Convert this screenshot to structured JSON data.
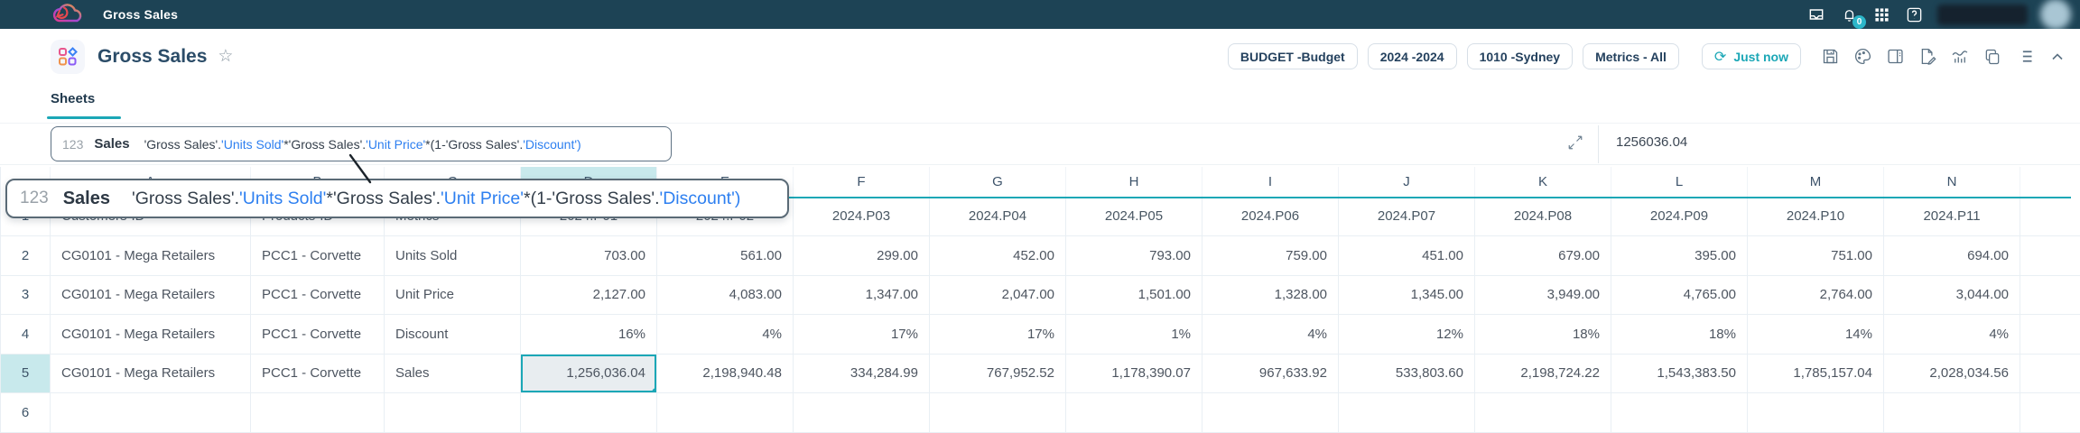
{
  "topbar": {
    "app_title": "Gross Sales",
    "notification_count": "0",
    "icons": [
      "inbox-icon",
      "bell-icon",
      "apps-grid-icon",
      "help-icon"
    ]
  },
  "header": {
    "title": "Gross Sales",
    "context_pills": [
      {
        "label": "BUDGET -Budget"
      },
      {
        "label": "2024 -2024"
      },
      {
        "label": "1010 -Sydney"
      },
      {
        "label": "Metrics - All"
      }
    ],
    "refresh_label": "Just now",
    "toolbar_icons": [
      "save-icon",
      "palette-icon",
      "board-icon",
      "edit-doc-icon",
      "chart-icon",
      "copy-icon",
      "list-icon",
      "collapse-icon"
    ]
  },
  "tabs": {
    "active": "Sheets"
  },
  "formula_bar": {
    "type_badge": "123",
    "name": "Sales",
    "tokens": [
      {
        "t": "'Gross Sales'.",
        "c": "d"
      },
      {
        "t": "'Units Sold'",
        "c": "b"
      },
      {
        "t": "*'Gross Sales'.",
        "c": "d"
      },
      {
        "t": "'Unit Price'",
        "c": "b"
      },
      {
        "t": "*(1-'Gross Sales'.",
        "c": "d"
      },
      {
        "t": "'Discount'",
        "c": "b"
      },
      {
        "t": ")",
        "c": "b"
      }
    ],
    "value": "1256036.04"
  },
  "grid": {
    "column_letters": [
      "A",
      "B",
      "C",
      "D",
      "E",
      "F",
      "G",
      "H",
      "I",
      "J",
      "K",
      "L",
      "M",
      "N"
    ],
    "selected_column": "D",
    "selected_row": "5",
    "selected_cell_col_index": 3,
    "header_row": [
      "Customers-ID",
      "Products-ID",
      "Metrics",
      "2024.P01",
      "2024.P02",
      "2024.P03",
      "2024.P04",
      "2024.P05",
      "2024.P06",
      "2024.P07",
      "2024.P08",
      "2024.P09",
      "2024.P10",
      "2024.P11"
    ],
    "rows": [
      {
        "num": "2",
        "cells": [
          "CG0101 - Mega Retailers",
          "PCC1 - Corvette",
          "Units Sold",
          "703.00",
          "561.00",
          "299.00",
          "452.00",
          "793.00",
          "759.00",
          "451.00",
          "679.00",
          "395.00",
          "751.00",
          "694.00"
        ]
      },
      {
        "num": "3",
        "cells": [
          "CG0101 - Mega Retailers",
          "PCC1 - Corvette",
          "Unit Price",
          "2,127.00",
          "4,083.00",
          "1,347.00",
          "2,047.00",
          "1,501.00",
          "1,328.00",
          "1,345.00",
          "3,949.00",
          "4,765.00",
          "2,764.00",
          "3,044.00"
        ]
      },
      {
        "num": "4",
        "cells": [
          "CG0101 - Mega Retailers",
          "PCC1 - Corvette",
          "Discount",
          "16%",
          "4%",
          "17%",
          "17%",
          "1%",
          "4%",
          "12%",
          "18%",
          "18%",
          "14%",
          "4%"
        ]
      },
      {
        "num": "5",
        "cells": [
          "CG0101 - Mega Retailers",
          "PCC1 - Corvette",
          "Sales",
          "1,256,036.04",
          "2,198,940.48",
          "334,284.99",
          "767,952.52",
          "1,178,390.07",
          "967,633.92",
          "533,803.60",
          "2,198,724.22",
          "1,543,383.50",
          "1,785,157.04",
          "2,028,034.56"
        ]
      },
      {
        "num": "6",
        "cells": [
          "",
          "",
          "",
          "",
          "",
          "",
          "",
          "",
          "",
          "",
          "",
          "",
          "",
          ""
        ]
      }
    ]
  },
  "colors": {
    "accent_teal": "#1ba7b6",
    "topbar_bg": "#1d4355",
    "formula_blue": "#2d7ff0",
    "selected_header_bg": "#c8e9ec",
    "selected_cell_bg": "#e8edf0"
  }
}
